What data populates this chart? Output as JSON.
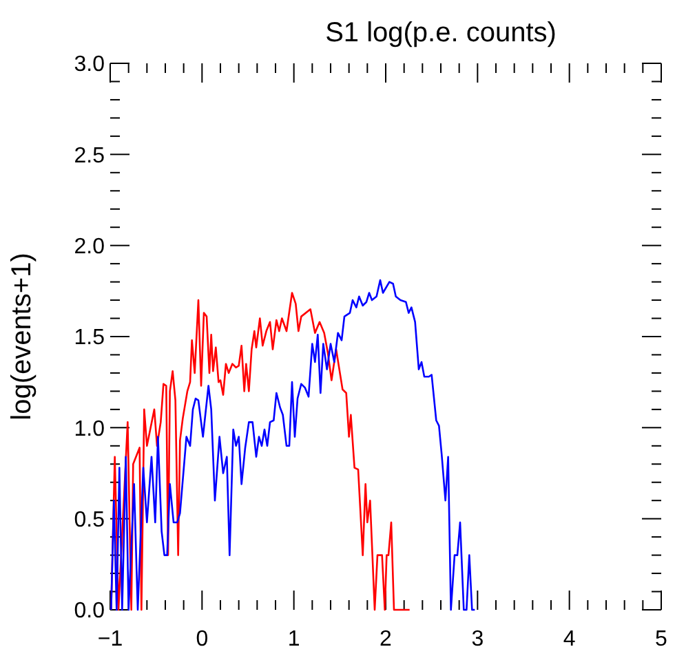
{
  "chart_data": {
    "type": "line",
    "title": "S1 log(p.e. counts)",
    "ylabel": "log(events+1)",
    "xlim": [
      -1,
      5
    ],
    "ylim": [
      0,
      3
    ],
    "xticks": [
      {
        "value": -1,
        "label": "−1"
      },
      {
        "value": -0.8,
        "label": null
      },
      {
        "value": -0.6,
        "label": null
      },
      {
        "value": -0.4,
        "label": null
      },
      {
        "value": -0.2,
        "label": null
      },
      0,
      {
        "value": 0.2,
        "label": null
      },
      {
        "value": 0.4,
        "label": null
      },
      {
        "value": 0.6,
        "label": null
      },
      {
        "value": 0.8,
        "label": null
      },
      1,
      {
        "value": 1.2,
        "label": null
      },
      {
        "value": 1.4,
        "label": null
      },
      {
        "value": 1.6,
        "label": null
      },
      {
        "value": 1.8,
        "label": null
      },
      2,
      {
        "value": 2.2,
        "label": null
      },
      {
        "value": 2.4,
        "label": null
      },
      {
        "value": 2.6,
        "label": null
      },
      {
        "value": 2.8,
        "label": null
      },
      3,
      {
        "value": 3.2,
        "label": null
      },
      {
        "value": 3.4,
        "label": null
      },
      {
        "value": 3.6,
        "label": null
      },
      {
        "value": 3.8,
        "label": null
      },
      4,
      {
        "value": 4.2,
        "label": null
      },
      {
        "value": 4.4,
        "label": null
      },
      {
        "value": 4.6,
        "label": null
      },
      {
        "value": 4.8,
        "label": null
      },
      5
    ],
    "yticks": [
      {
        "value": 0,
        "label": "0.0"
      },
      {
        "value": 0.1,
        "label": null
      },
      {
        "value": 0.2,
        "label": null
      },
      {
        "value": 0.3,
        "label": null
      },
      {
        "value": 0.4,
        "label": null
      },
      {
        "value": 0.5,
        "label": "0.5"
      },
      {
        "value": 0.6,
        "label": null
      },
      {
        "value": 0.7,
        "label": null
      },
      {
        "value": 0.8,
        "label": null
      },
      {
        "value": 0.9,
        "label": null
      },
      {
        "value": 1,
        "label": "1.0"
      },
      {
        "value": 1.1,
        "label": null
      },
      {
        "value": 1.2,
        "label": null
      },
      {
        "value": 1.3,
        "label": null
      },
      {
        "value": 1.4,
        "label": null
      },
      {
        "value": 1.5,
        "label": "1.5"
      },
      {
        "value": 1.6,
        "label": null
      },
      {
        "value": 1.7,
        "label": null
      },
      {
        "value": 1.8,
        "label": null
      },
      {
        "value": 1.9,
        "label": null
      },
      {
        "value": 2,
        "label": "2.0"
      },
      {
        "value": 2.1,
        "label": null
      },
      {
        "value": 2.2,
        "label": null
      },
      {
        "value": 2.3,
        "label": null
      },
      {
        "value": 2.4,
        "label": null
      },
      {
        "value": 2.5,
        "label": "2.5"
      },
      {
        "value": 2.6,
        "label": null
      },
      {
        "value": 2.7,
        "label": null
      },
      {
        "value": 2.8,
        "label": null
      },
      {
        "value": 2.9,
        "label": null
      },
      {
        "value": 3,
        "label": "3.0"
      }
    ],
    "grid": false,
    "series": [
      {
        "color": "#ff0000",
        "x": [
          -0.99,
          -0.95,
          -0.91,
          -0.81,
          -0.77,
          -0.75,
          -0.68,
          -0.66,
          -0.63,
          -0.6,
          -0.56,
          -0.52,
          -0.49,
          -0.45,
          -0.42,
          -0.39,
          -0.37,
          -0.35,
          -0.32,
          -0.29,
          -0.26,
          -0.24,
          -0.21,
          -0.16,
          -0.13,
          -0.11,
          -0.08,
          -0.04,
          -0.01,
          0.02,
          0.05,
          0.08,
          0.1,
          0.12,
          0.15,
          0.18,
          0.2,
          0.23,
          0.26,
          0.29,
          0.33,
          0.37,
          0.4,
          0.43,
          0.46,
          0.48,
          0.51,
          0.54,
          0.57,
          0.59,
          0.63,
          0.66,
          0.7,
          0.74,
          0.77,
          0.81,
          0.84,
          0.87,
          0.92,
          0.98,
          1.02,
          1.05,
          1.08,
          1.18,
          1.23,
          1.28,
          1.33,
          1.37,
          1.41,
          1.46,
          1.53,
          1.57,
          1.6,
          1.62,
          1.66,
          1.7,
          1.75,
          1.78,
          1.8,
          1.83,
          1.88,
          1.91,
          1.96,
          1.99,
          2.01,
          2.03,
          2.06,
          2.09,
          2.26
        ],
        "values": [
          0,
          0.84,
          0,
          1.03,
          0,
          0.8,
          0.89,
          0,
          1.1,
          0.9,
          1,
          1.1,
          0.9,
          1.03,
          1.24,
          1.23,
          0.3,
          1.2,
          1.31,
          1.15,
          0.3,
          0.93,
          1.05,
          1.2,
          1.25,
          1.48,
          1.3,
          1.7,
          1.23,
          1.63,
          1.61,
          1.3,
          1.51,
          1.31,
          1.44,
          1.25,
          1.26,
          1.18,
          1.35,
          1.3,
          1.35,
          1.33,
          1.34,
          1.45,
          1.2,
          1.35,
          1.2,
          1.43,
          1.53,
          1.44,
          1.6,
          1.45,
          1.53,
          1.58,
          1.43,
          1.59,
          1.53,
          1.6,
          1.53,
          1.74,
          1.68,
          1.53,
          1.61,
          1.65,
          1.52,
          1.58,
          1.52,
          1.41,
          1.26,
          1.43,
          1.21,
          1.19,
          0.95,
          1.07,
          0.78,
          0.77,
          0.3,
          0.69,
          0.48,
          0.6,
          0,
          0.3,
          0.3,
          0,
          0.3,
          0.3,
          0.48,
          0,
          0
        ]
      },
      {
        "color": "#0000ff",
        "x": [
          -0.99,
          -0.96,
          -0.93,
          -0.9,
          -0.87,
          -0.83,
          -0.8,
          -0.74,
          -0.7,
          -0.64,
          -0.6,
          -0.55,
          -0.51,
          -0.48,
          -0.44,
          -0.41,
          -0.38,
          -0.35,
          -0.31,
          -0.27,
          -0.24,
          -0.17,
          -0.13,
          -0.1,
          -0.07,
          -0.04,
          0.01,
          0.07,
          0.1,
          0.14,
          0.19,
          0.23,
          0.27,
          0.3,
          0.34,
          0.37,
          0.4,
          0.43,
          0.47,
          0.51,
          0.55,
          0.59,
          0.62,
          0.65,
          0.68,
          0.71,
          0.74,
          0.78,
          0.81,
          0.85,
          0.88,
          0.92,
          0.95,
          0.98,
          1.01,
          1.04,
          1.08,
          1.12,
          1.16,
          1.2,
          1.23,
          1.26,
          1.29,
          1.32,
          1.36,
          1.4,
          1.44,
          1.48,
          1.52,
          1.55,
          1.61,
          1.64,
          1.68,
          1.71,
          1.75,
          1.79,
          1.82,
          1.85,
          1.9,
          1.94,
          1.97,
          2.04,
          2.08,
          2.11,
          2.16,
          2.22,
          2.25,
          2.28,
          2.32,
          2.36,
          2.39,
          2.42,
          2.47,
          2.5,
          2.55,
          2.58,
          2.61,
          2.65,
          2.68,
          2.71,
          2.75,
          2.78,
          2.81,
          2.85,
          2.88,
          2.91,
          2.94,
          2.97
        ],
        "values": [
          0,
          0.6,
          0,
          0.78,
          0,
          0.84,
          0,
          0.69,
          0,
          0.78,
          0.48,
          0.84,
          0.48,
          0.95,
          0.43,
          0.3,
          0.3,
          0.69,
          0.48,
          0.48,
          0.53,
          0.95,
          0.9,
          1.1,
          1.16,
          1.15,
          0.95,
          1.23,
          1.1,
          0.6,
          0.95,
          0.75,
          0.84,
          0.3,
          0.99,
          0.9,
          0.95,
          0.69,
          0.89,
          1.03,
          1.03,
          0.84,
          0.95,
          0.9,
          0.99,
          0.9,
          1.03,
          1.04,
          1.19,
          1.11,
          1.07,
          0.9,
          0.9,
          1.25,
          0.95,
          1.16,
          1.24,
          1.22,
          1.17,
          1.46,
          1.36,
          1.51,
          1.19,
          1.46,
          1.32,
          1.46,
          1.36,
          1.52,
          1.48,
          1.61,
          1.63,
          1.7,
          1.66,
          1.72,
          1.67,
          1.69,
          1.74,
          1.7,
          1.72,
          1.81,
          1.74,
          1.8,
          1.79,
          1.72,
          1.7,
          1.69,
          1.63,
          1.66,
          1.58,
          1.32,
          1.36,
          1.28,
          1.28,
          1.29,
          1.04,
          1.01,
          0.85,
          0.6,
          0.84,
          0,
          0.3,
          0.3,
          0.48,
          0,
          0,
          0.3,
          0,
          0
        ]
      }
    ]
  }
}
